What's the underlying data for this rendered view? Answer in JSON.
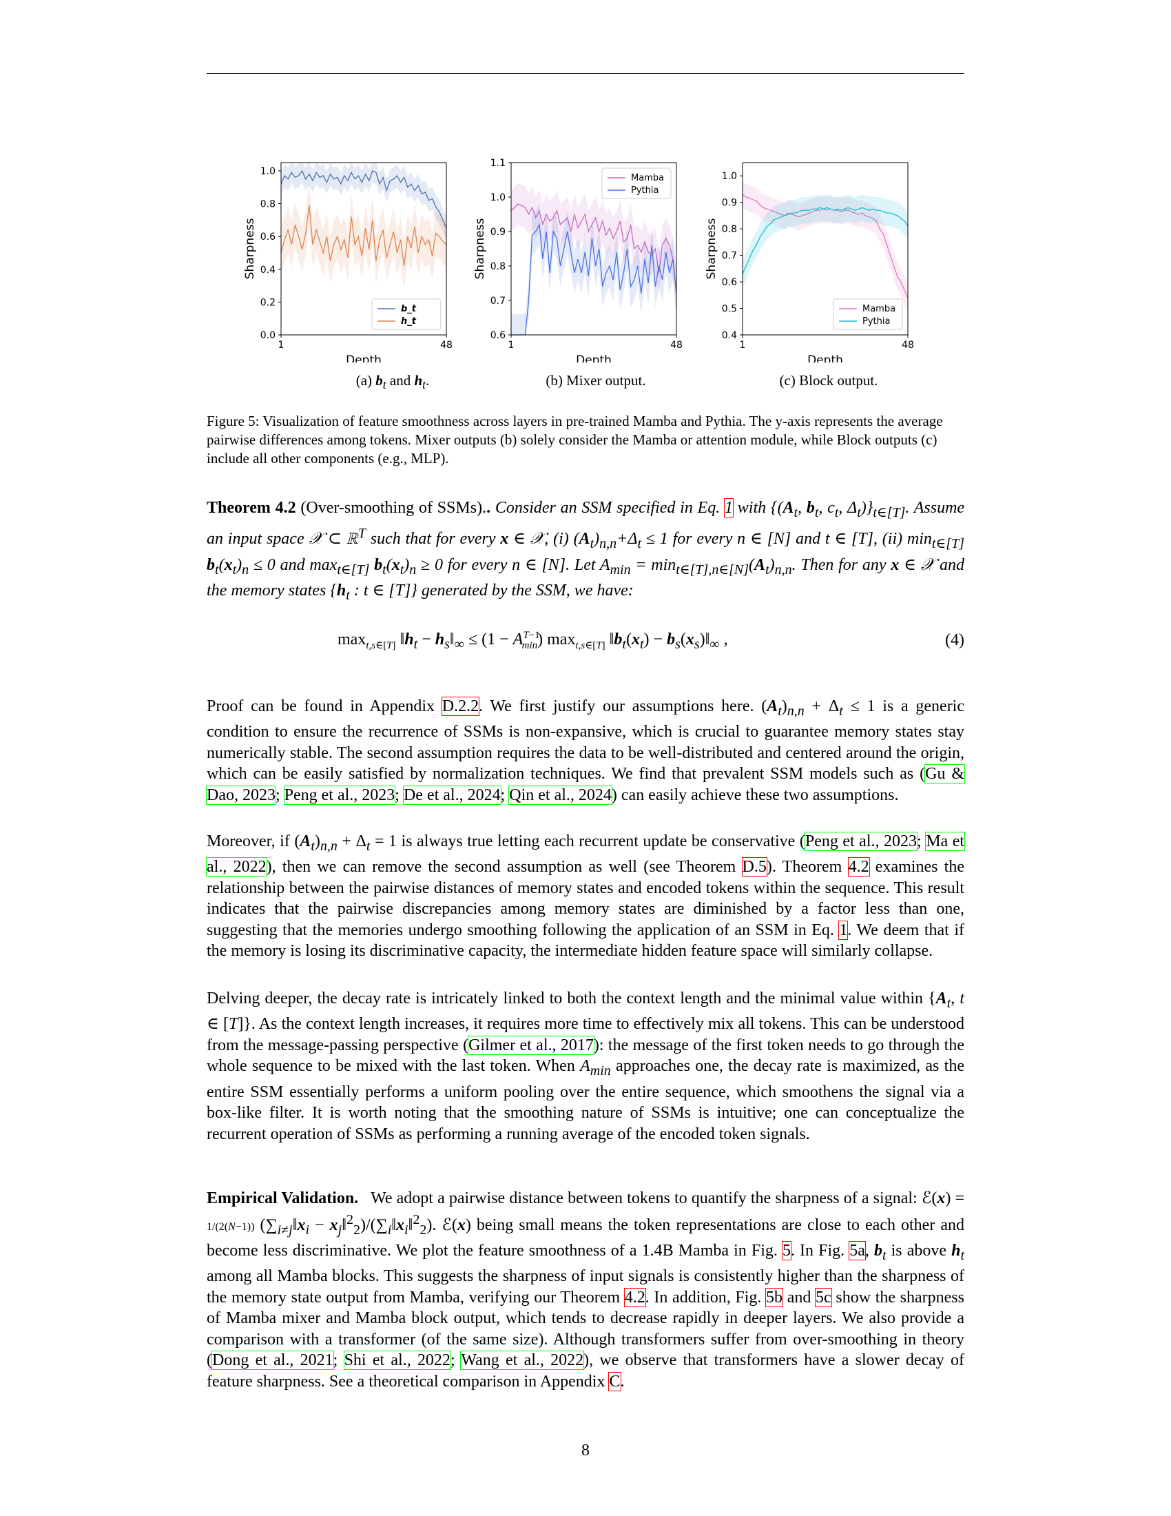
{
  "figure": {
    "subcaptions": [
      "(a) b_t and h_t.",
      "(b) Mixer output.",
      "(c) Block output."
    ],
    "caption": "Figure 5: Visualization of feature smoothness across layers in pre-trained Mamba and Pythia. The y-axis represents the average pairwise differences among tokens. Mixer outputs (b) solely consider the Mamba or attention module, while Block outputs (c) include all other components (e.g., MLP).",
    "colors": {
      "bt": "#4c72b0",
      "ht": "#dd8452",
      "mamba": "#c86bc0",
      "pythia": "#4c72e0",
      "mamba_c": "#e377c2",
      "pythia_c": "#17becf"
    }
  },
  "chart_data": [
    {
      "type": "line",
      "xlabel": "Depth",
      "ylabel": "Sharpness",
      "xticks": [
        "1",
        "48"
      ],
      "xlim": [
        1,
        48
      ],
      "yticks": [
        "0.0",
        "0.2",
        "0.4",
        "0.6",
        "0.8",
        "1.0"
      ],
      "ylim": [
        0,
        1.05
      ],
      "legend": "bottom-right",
      "series": [
        {
          "name": "b_t",
          "values": [
            0.92,
            0.97,
            0.95,
            0.99,
            0.96,
            0.97,
            1.0,
            0.95,
            0.98,
            0.94,
            0.99,
            0.96,
            0.97,
            0.93,
            0.98,
            0.95,
            0.96,
            0.92,
            0.97,
            0.94,
            0.99,
            0.95,
            0.97,
            0.93,
            0.98,
            0.94,
            1.0,
            0.99,
            0.92,
            0.96,
            0.88,
            0.94,
            0.95,
            0.97,
            0.93,
            0.96,
            0.9,
            0.92,
            0.88,
            0.91,
            0.86,
            0.87,
            0.82,
            0.83,
            0.78,
            0.75,
            0.7,
            0.65
          ]
        },
        {
          "name": "h_t",
          "values": [
            0.5,
            0.58,
            0.64,
            0.55,
            0.67,
            0.6,
            0.52,
            0.62,
            0.79,
            0.55,
            0.64,
            0.57,
            0.5,
            0.6,
            0.45,
            0.55,
            0.6,
            0.52,
            0.58,
            0.47,
            0.72,
            0.55,
            0.6,
            0.48,
            0.65,
            0.52,
            0.7,
            0.45,
            0.58,
            0.64,
            0.47,
            0.55,
            0.63,
            0.5,
            0.58,
            0.42,
            0.6,
            0.53,
            0.66,
            0.5,
            0.6,
            0.55,
            0.58,
            0.48,
            0.62,
            0.6,
            0.57,
            0.55
          ]
        }
      ]
    },
    {
      "type": "line",
      "xlabel": "Depth",
      "ylabel": "Sharpness",
      "xticks": [
        "1",
        "48"
      ],
      "xlim": [
        1,
        48
      ],
      "yticks": [
        "0.6",
        "0.7",
        "0.8",
        "0.9",
        "1.0",
        "1.1"
      ],
      "ylim": [
        0.6,
        1.1
      ],
      "legend": "top-right",
      "series": [
        {
          "name": "Mamba",
          "values": [
            0.96,
            0.97,
            0.98,
            0.975,
            0.97,
            0.95,
            0.97,
            0.94,
            0.96,
            0.92,
            0.95,
            0.93,
            0.94,
            0.96,
            0.92,
            0.93,
            0.94,
            0.9,
            0.95,
            0.91,
            0.93,
            0.95,
            0.9,
            0.92,
            0.94,
            0.9,
            0.93,
            0.89,
            0.91,
            0.88,
            0.9,
            0.93,
            0.87,
            0.88,
            0.92,
            0.85,
            0.86,
            0.84,
            0.87,
            0.84,
            0.83,
            0.85,
            0.78,
            0.86,
            0.88,
            0.86,
            0.82,
            0.72
          ]
        },
        {
          "name": "Pythia",
          "values": [
            0.6,
            0.6,
            0.6,
            0.6,
            0.6,
            0.7,
            0.89,
            0.9,
            0.92,
            0.82,
            0.9,
            0.78,
            0.9,
            0.88,
            0.8,
            0.85,
            0.9,
            0.84,
            0.78,
            0.82,
            0.78,
            0.84,
            0.77,
            0.88,
            0.8,
            0.85,
            0.74,
            0.78,
            0.8,
            0.76,
            0.84,
            0.73,
            0.78,
            0.85,
            0.74,
            0.76,
            0.8,
            0.72,
            0.82,
            0.75,
            0.86,
            0.74,
            0.8,
            0.76,
            0.84,
            0.78,
            0.82,
            0.72
          ]
        }
      ]
    },
    {
      "type": "line",
      "xlabel": "Depth",
      "ylabel": "Sharpness",
      "xticks": [
        "1",
        "48"
      ],
      "xlim": [
        1,
        48
      ],
      "yticks": [
        "0.4",
        "0.5",
        "0.6",
        "0.7",
        "0.8",
        "0.9",
        "1.0"
      ],
      "ylim": [
        0.4,
        1.05
      ],
      "legend": "bottom-right",
      "series": [
        {
          "name": "Mamba",
          "values": [
            0.93,
            0.92,
            0.915,
            0.91,
            0.905,
            0.89,
            0.88,
            0.875,
            0.87,
            0.865,
            0.86,
            0.855,
            0.85,
            0.86,
            0.855,
            0.85,
            0.845,
            0.85,
            0.855,
            0.86,
            0.865,
            0.87,
            0.87,
            0.875,
            0.87,
            0.875,
            0.87,
            0.87,
            0.865,
            0.87,
            0.87,
            0.865,
            0.86,
            0.855,
            0.86,
            0.85,
            0.845,
            0.84,
            0.83,
            0.8,
            0.78,
            0.74,
            0.7,
            0.66,
            0.62,
            0.6,
            0.57,
            0.54
          ]
        },
        {
          "name": "Pythia",
          "values": [
            0.63,
            0.66,
            0.69,
            0.72,
            0.74,
            0.77,
            0.79,
            0.81,
            0.82,
            0.835,
            0.84,
            0.845,
            0.85,
            0.855,
            0.86,
            0.86,
            0.865,
            0.87,
            0.87,
            0.87,
            0.875,
            0.875,
            0.88,
            0.875,
            0.88,
            0.875,
            0.87,
            0.875,
            0.87,
            0.875,
            0.88,
            0.875,
            0.87,
            0.875,
            0.88,
            0.875,
            0.87,
            0.875,
            0.87,
            0.87,
            0.865,
            0.86,
            0.86,
            0.855,
            0.85,
            0.84,
            0.83,
            0.81
          ]
        }
      ]
    }
  ],
  "theorem": {
    "head": "Theorem 4.2",
    "name": "(Over-smoothing of SSMs).",
    "ref_eq": "1"
  },
  "equation_number": "(4)",
  "refs": {
    "appendix_d22": "D.2.2",
    "gu_dao": "Gu & Dao, 2023",
    "peng": "Peng et al., 2023",
    "de": "De et al., 2024",
    "qin": "Qin et al., 2024",
    "peng2": "Peng et al., 2023",
    "ma": "Ma et al., 2022",
    "theorem_d5": "D.5",
    "theorem_42": "4.2",
    "eq1": "1",
    "gilmer": "Gilmer et al., 2017",
    "fig5": "5",
    "fig5a": "5a",
    "theorem_42b": "4.2",
    "fig5b": "5b",
    "fig5c": "5c",
    "dong": "Dong et al., 2021",
    "shi": "Shi et al., 2022",
    "wang": "Wang et al., 2022",
    "appendix_c": "C"
  },
  "page_number": "8"
}
